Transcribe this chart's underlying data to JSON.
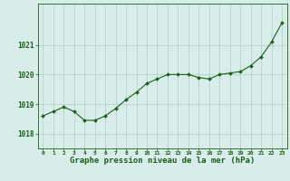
{
  "hours": [
    0,
    1,
    2,
    3,
    4,
    5,
    6,
    7,
    8,
    9,
    10,
    11,
    12,
    13,
    14,
    15,
    16,
    17,
    18,
    19,
    20,
    21,
    22,
    23
  ],
  "pressure": [
    1018.6,
    1018.75,
    1018.9,
    1018.75,
    1018.45,
    1018.45,
    1018.6,
    1018.85,
    1019.15,
    1019.4,
    1019.7,
    1019.85,
    1020.0,
    1020.0,
    1020.0,
    1019.9,
    1019.85,
    1020.0,
    1020.05,
    1020.1,
    1020.3,
    1020.6,
    1021.1,
    1021.75
  ],
  "bg_color": "#d8ecea",
  "line_color": "#1a5e1a",
  "marker_color": "#1a5e1a",
  "grid_color": "#aececa",
  "ylabel_ticks": [
    1018,
    1019,
    1020,
    1021
  ],
  "xlabel_label": "Graphe pression niveau de la mer (hPa)",
  "ylim": [
    1017.5,
    1022.4
  ],
  "xlim": [
    -0.5,
    23.5
  ],
  "tick_label_color": "#1a5e1a",
  "axis_label_color": "#1a5e1a",
  "border_color": "#1a5e1a"
}
